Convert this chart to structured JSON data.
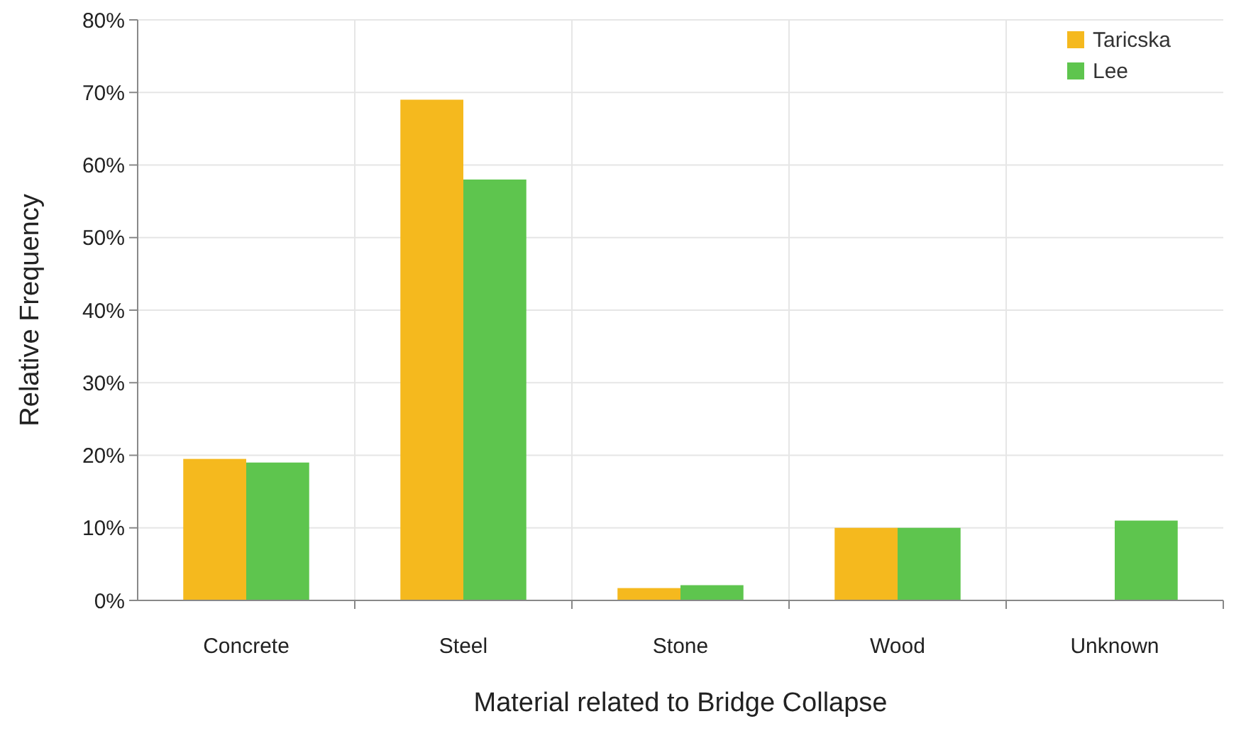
{
  "chart_data": {
    "type": "bar",
    "xlabel": "Material related to Bridge Collapse",
    "ylabel": "Relative Frequency",
    "categories": [
      "Concrete",
      "Steel",
      "Stone",
      "Wood",
      "Unknown"
    ],
    "series": [
      {
        "name": "Taricska",
        "color": "#f5b91e",
        "values": [
          19.5,
          69,
          1.7,
          10,
          0
        ]
      },
      {
        "name": "Lee",
        "color": "#5ec54e",
        "values": [
          19,
          58,
          2.1,
          10,
          11
        ]
      }
    ],
    "ylim": [
      0,
      80
    ],
    "yticks": [
      {
        "value": 0,
        "label": "0%"
      },
      {
        "value": 10,
        "label": "10%"
      },
      {
        "value": 20,
        "label": "20%"
      },
      {
        "value": 30,
        "label": "30%"
      },
      {
        "value": 40,
        "label": "40%"
      },
      {
        "value": 50,
        "label": "50%"
      },
      {
        "value": 60,
        "label": "60%"
      },
      {
        "value": 70,
        "label": "70%"
      },
      {
        "value": 80,
        "label": "80%"
      }
    ],
    "grid": true,
    "legend": "top right"
  }
}
